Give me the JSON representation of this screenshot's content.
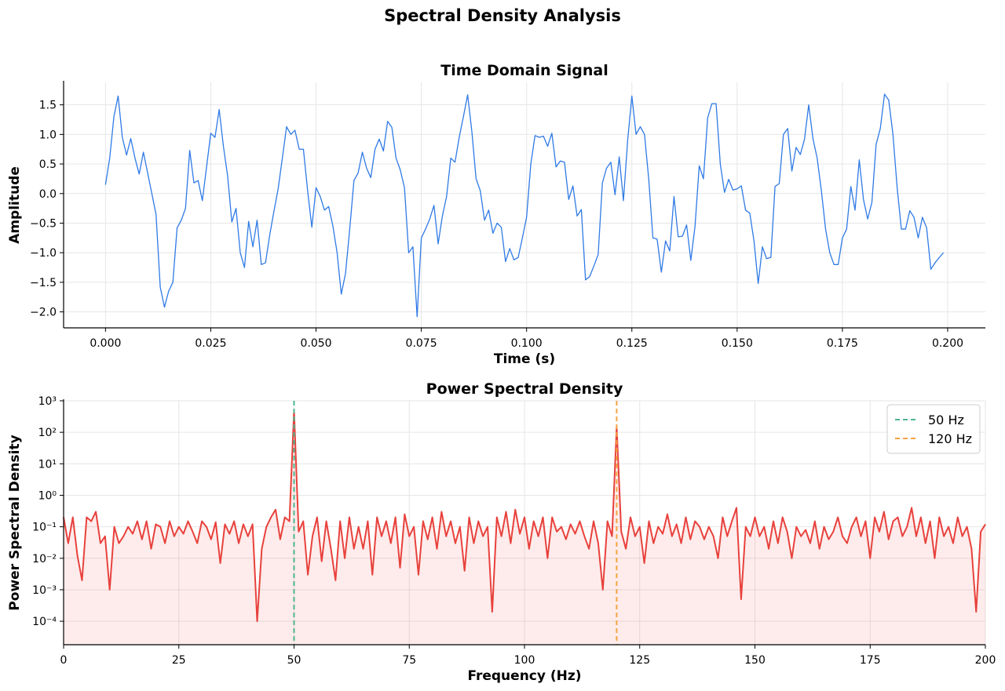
{
  "title": "Spectral Density Analysis",
  "chart_data": [
    {
      "type": "line",
      "title": "Time Domain Signal",
      "xlabel": "Time (s)",
      "ylabel": "Amplitude",
      "x": [
        0,
        0.001,
        0.002,
        0.003,
        0.004,
        0.005,
        0.006,
        0.007,
        0.008,
        0.009,
        0.01,
        0.011,
        0.012,
        0.013,
        0.014,
        0.015,
        0.016,
        0.017,
        0.018,
        0.019,
        0.02,
        0.021,
        0.022,
        0.023,
        0.024,
        0.025,
        0.026,
        0.027,
        0.028,
        0.029,
        0.03,
        0.031,
        0.032,
        0.033,
        0.034,
        0.035,
        0.036,
        0.037,
        0.038,
        0.039,
        0.04,
        0.041,
        0.042,
        0.043,
        0.044,
        0.045,
        0.046,
        0.047,
        0.048,
        0.049,
        0.05,
        0.051,
        0.052,
        0.053,
        0.054,
        0.055,
        0.056,
        0.057,
        0.058,
        0.059,
        0.06,
        0.061,
        0.062,
        0.063,
        0.064,
        0.065,
        0.066,
        0.067,
        0.068,
        0.069,
        0.07,
        0.071,
        0.072,
        0.073,
        0.074,
        0.075,
        0.076,
        0.077,
        0.078,
        0.079,
        0.08,
        0.081,
        0.082,
        0.083,
        0.084,
        0.085,
        0.086,
        0.087,
        0.088,
        0.089,
        0.09,
        0.091,
        0.092,
        0.093,
        0.094,
        0.095,
        0.096,
        0.097,
        0.098,
        0.099,
        0.1,
        0.101,
        0.102,
        0.103,
        0.104,
        0.105,
        0.106,
        0.107,
        0.108,
        0.109,
        0.11,
        0.111,
        0.112,
        0.113,
        0.114,
        0.115,
        0.116,
        0.117,
        0.118,
        0.119,
        0.12,
        0.121,
        0.122,
        0.123,
        0.124,
        0.125,
        0.126,
        0.127,
        0.128,
        0.129,
        0.13,
        0.131,
        0.132,
        0.133,
        0.134,
        0.135,
        0.136,
        0.137,
        0.138,
        0.139,
        0.14,
        0.141,
        0.142,
        0.143,
        0.144,
        0.145,
        0.146,
        0.147,
        0.148,
        0.149,
        0.15,
        0.151,
        0.152,
        0.153,
        0.154,
        0.155,
        0.156,
        0.157,
        0.158,
        0.159,
        0.16,
        0.161,
        0.162,
        0.163,
        0.164,
        0.165,
        0.166,
        0.167,
        0.168,
        0.169,
        0.17,
        0.171,
        0.172,
        0.173,
        0.174,
        0.175,
        0.176,
        0.177,
        0.178,
        0.179,
        0.18,
        0.181,
        0.182,
        0.183,
        0.184,
        0.185,
        0.186,
        0.187,
        0.188,
        0.189,
        0.19,
        0.191,
        0.192,
        0.193,
        0.194,
        0.195,
        0.196,
        0.197,
        0.198,
        0.199
      ],
      "values": [
        0.15,
        0.6,
        1.3,
        1.65,
        0.95,
        0.65,
        0.93,
        0.6,
        0.33,
        0.7,
        0.35,
        0.0,
        -0.35,
        -1.58,
        -1.92,
        -1.65,
        -1.5,
        -0.58,
        -0.45,
        -0.25,
        0.73,
        0.18,
        0.22,
        -0.12,
        0.45,
        1.02,
        0.95,
        1.42,
        0.8,
        0.3,
        -0.48,
        -0.25,
        -1.0,
        -1.25,
        -0.47,
        -0.9,
        -0.45,
        -1.2,
        -1.17,
        -0.7,
        -0.3,
        0.08,
        0.6,
        1.13,
        1.0,
        1.07,
        0.75,
        0.75,
        0.05,
        -0.57,
        0.1,
        -0.05,
        -0.28,
        -0.22,
        -0.55,
        -1.0,
        -1.7,
        -1.35,
        -0.6,
        0.22,
        0.35,
        0.7,
        0.43,
        0.27,
        0.75,
        0.92,
        0.72,
        1.22,
        1.12,
        0.6,
        0.4,
        0.1,
        -1.0,
        -0.9,
        -2.08,
        -0.75,
        -0.6,
        -0.43,
        -0.2,
        -0.85,
        -0.38,
        -0.05,
        0.6,
        0.53,
        0.95,
        1.3,
        1.67,
        1.05,
        0.25,
        0.05,
        -0.45,
        -0.28,
        -0.67,
        -0.5,
        -0.57,
        -1.15,
        -0.93,
        -1.12,
        -1.08,
        -0.75,
        -0.4,
        0.5,
        0.98,
        0.95,
        0.97,
        0.8,
        1.02,
        0.45,
        0.55,
        0.53,
        -0.1,
        0.13,
        -0.38,
        -0.27,
        -1.46,
        -1.4,
        -1.22,
        -1.03,
        0.18,
        0.43,
        0.53,
        -0.02,
        0.62,
        -0.12,
        0.9,
        1.65,
        1.0,
        1.13,
        1.0,
        0.25,
        -0.75,
        -0.77,
        -1.33,
        -0.8,
        -0.97,
        -0.05,
        -0.73,
        -0.72,
        -0.53,
        -1.13,
        -0.55,
        0.47,
        0.25,
        1.28,
        1.52,
        1.52,
        0.5,
        0.02,
        0.24,
        0.06,
        0.08,
        0.13,
        -0.28,
        -0.33,
        -0.8,
        -1.52,
        -0.9,
        -1.1,
        -1.08,
        0.12,
        0.17,
        1.0,
        1.1,
        0.38,
        0.78,
        0.66,
        0.92,
        1.5,
        0.93,
        0.6,
        0.05,
        -0.6,
        -1.0,
        -1.2,
        -1.2,
        -0.75,
        -0.6,
        0.12,
        -0.28,
        0.57,
        -0.1,
        -0.43,
        -0.15,
        0.83,
        1.1,
        1.68,
        1.58,
        1.0,
        0.1,
        -0.6,
        -0.6,
        -0.29,
        -0.4,
        -0.75,
        -0.4,
        -0.58,
        -1.28,
        -1.17,
        -1.08,
        -1.0
      ],
      "color": "#2f7ae5",
      "line_width": 1.3,
      "xlim": [
        -0.00995,
        0.20895
      ],
      "ylim": [
        -2.27,
        1.88
      ],
      "xticks": [
        {
          "value": 0,
          "label": "0.000"
        },
        0.025,
        {
          "value": 0.05,
          "label": "0.050"
        },
        0.075,
        {
          "value": 0.1,
          "label": "0.100"
        },
        0.125,
        {
          "value": 0.15,
          "label": "0.150"
        },
        0.175,
        {
          "value": 0.2,
          "label": "0.200"
        }
      ],
      "yticks": [
        {
          "value": -2,
          "label": "−2.0"
        },
        {
          "value": -1.5,
          "label": "−1.5"
        },
        {
          "value": -1,
          "label": "−1.0"
        },
        {
          "value": -0.5,
          "label": "−0.5"
        },
        {
          "value": 0,
          "label": "0.0"
        },
        0.5,
        {
          "value": 1,
          "label": "1.0"
        },
        1.5
      ],
      "grid": true,
      "yscale": "linear"
    },
    {
      "type": "line",
      "title": "Power Spectral Density",
      "xlabel": "Frequency (Hz)",
      "ylabel": "Power Spectral Density",
      "x": [
        0,
        1,
        2,
        3,
        4,
        5,
        6,
        7,
        8,
        9,
        10,
        11,
        12,
        13,
        14,
        15,
        16,
        17,
        18,
        19,
        20,
        21,
        22,
        23,
        24,
        25,
        26,
        27,
        28,
        29,
        30,
        31,
        32,
        33,
        34,
        35,
        36,
        37,
        38,
        39,
        40,
        41,
        42,
        43,
        44,
        45,
        46,
        47,
        48,
        49,
        50,
        51,
        52,
        53,
        54,
        55,
        56,
        57,
        58,
        59,
        60,
        61,
        62,
        63,
        64,
        65,
        66,
        67,
        68,
        69,
        70,
        71,
        72,
        73,
        74,
        75,
        76,
        77,
        78,
        79,
        80,
        81,
        82,
        83,
        84,
        85,
        86,
        87,
        88,
        89,
        90,
        91,
        92,
        93,
        94,
        95,
        96,
        97,
        98,
        99,
        100,
        101,
        102,
        103,
        104,
        105,
        106,
        107,
        108,
        109,
        110,
        111,
        112,
        113,
        114,
        115,
        116,
        117,
        118,
        119,
        120,
        121,
        122,
        123,
        124,
        125,
        126,
        127,
        128,
        129,
        130,
        131,
        132,
        133,
        134,
        135,
        136,
        137,
        138,
        139,
        140,
        141,
        142,
        143,
        144,
        145,
        146,
        147,
        148,
        149,
        150,
        151,
        152,
        153,
        154,
        155,
        156,
        157,
        158,
        159,
        160,
        161,
        162,
        163,
        164,
        165,
        166,
        167,
        168,
        169,
        170,
        171,
        172,
        173,
        174,
        175,
        176,
        177,
        178,
        179,
        180,
        181,
        182,
        183,
        184,
        185,
        186,
        187,
        188,
        189,
        190,
        191,
        192,
        193,
        194,
        195,
        196,
        197,
        198,
        199,
        200
      ],
      "values": [
        0.2,
        0.03,
        0.2,
        0.012,
        0.002,
        0.2,
        0.15,
        0.3,
        0.03,
        0.05,
        0.001,
        0.1,
        0.03,
        0.05,
        0.1,
        0.06,
        0.15,
        0.04,
        0.15,
        0.02,
        0.12,
        0.1,
        0.03,
        0.15,
        0.05,
        0.1,
        0.06,
        0.15,
        0.07,
        0.03,
        0.15,
        0.1,
        0.04,
        0.14,
        0.007,
        0.12,
        0.06,
        0.15,
        0.03,
        0.12,
        0.05,
        0.12,
        0.0001,
        0.02,
        0.1,
        0.2,
        0.35,
        0.04,
        0.2,
        0.15,
        500,
        0.07,
        0.15,
        0.003,
        0.05,
        0.2,
        0.008,
        0.15,
        0.02,
        0.002,
        0.15,
        0.01,
        0.2,
        0.02,
        0.1,
        0.02,
        0.15,
        0.003,
        0.2,
        0.05,
        0.15,
        0.03,
        0.2,
        0.005,
        0.25,
        0.05,
        0.1,
        0.003,
        0.15,
        0.04,
        0.2,
        0.02,
        0.3,
        0.05,
        0.15,
        0.03,
        0.1,
        0.004,
        0.2,
        0.03,
        0.15,
        0.05,
        0.1,
        0.0002,
        0.2,
        0.05,
        0.3,
        0.03,
        0.35,
        0.06,
        0.2,
        0.02,
        0.15,
        0.05,
        0.2,
        0.01,
        0.2,
        0.07,
        0.1,
        0.04,
        0.12,
        0.06,
        0.15,
        0.05,
        0.02,
        0.15,
        0.03,
        0.001,
        0.15,
        0.05,
        150,
        0.07,
        0.02,
        0.2,
        0.05,
        0.1,
        0.007,
        0.15,
        0.03,
        0.1,
        0.06,
        0.25,
        0.05,
        0.12,
        0.03,
        0.2,
        0.04,
        0.15,
        0.1,
        0.04,
        0.1,
        0.05,
        0.01,
        0.2,
        0.05,
        0.15,
        0.4,
        0.0005,
        0.1,
        0.05,
        0.2,
        0.05,
        0.1,
        0.02,
        0.15,
        0.03,
        0.2,
        0.07,
        0.01,
        0.1,
        0.05,
        0.08,
        0.03,
        0.15,
        0.02,
        0.1,
        0.04,
        0.07,
        0.2,
        0.05,
        0.03,
        0.1,
        0.2,
        0.05,
        0.15,
        0.01,
        0.2,
        0.07,
        0.3,
        0.04,
        0.15,
        0.2,
        0.05,
        0.1,
        0.4,
        0.05,
        0.2,
        0.03,
        0.15,
        0.01,
        0.2,
        0.05,
        0.1,
        0.03,
        0.2,
        0.05,
        0.1,
        0.02,
        0.0002,
        0.07,
        0.12
      ],
      "color": "#e8413c",
      "line_width": 2,
      "fill_alpha": 0.1,
      "xlim": [
        0,
        200
      ],
      "ylim": [
        1.8e-05,
        1000
      ],
      "xticks": [
        0,
        25,
        50,
        75,
        100,
        125,
        150,
        175,
        200
      ],
      "yticks": [
        {
          "value": 0.0001,
          "label": "10⁻⁴"
        },
        {
          "value": 0.001,
          "label": "10⁻³"
        },
        {
          "value": 0.01,
          "label": "10⁻²"
        },
        {
          "value": 0.1,
          "label": "10⁻¹"
        },
        {
          "value": 1,
          "label": "10⁰"
        },
        {
          "value": 10,
          "label": "10¹"
        },
        {
          "value": 100,
          "label": "10²"
        },
        {
          "value": 1000,
          "label": "10³"
        }
      ],
      "grid": true,
      "yscale": "log",
      "vlines": [
        {
          "x": 50,
          "name": "50 Hz",
          "color": "#4cb78f"
        },
        {
          "x": 120,
          "name": "120 Hz",
          "color": "#f5a442"
        }
      ],
      "legend": "upper right"
    }
  ]
}
